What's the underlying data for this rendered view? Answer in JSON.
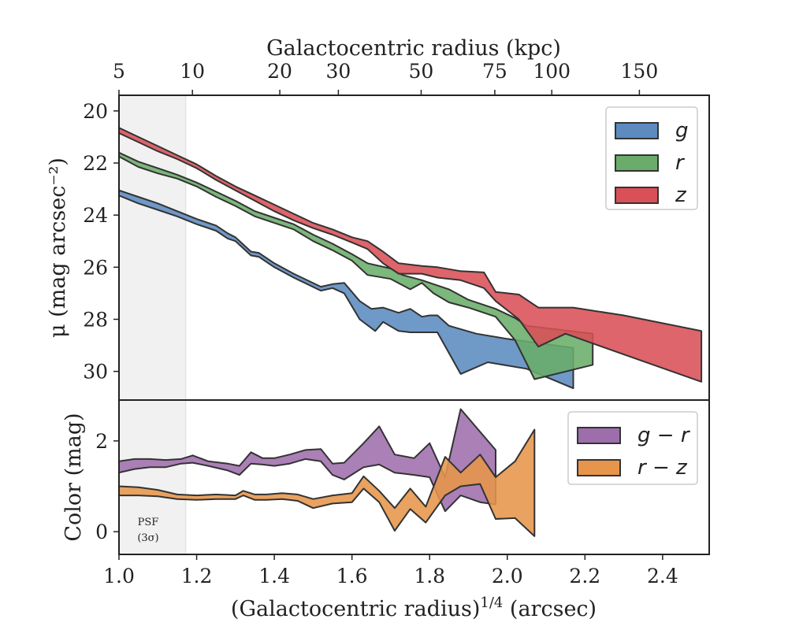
{
  "chart_data": [
    {
      "type": "area",
      "panel": "surface-brightness",
      "top_xlabel": "Galactocentric radius (kpc)",
      "top_xticks": [
        "5",
        "10",
        "20",
        "30",
        "50",
        "75",
        "100",
        "150"
      ],
      "top_xtick_kpc": [
        5,
        10,
        20,
        30,
        50,
        75,
        100,
        150
      ],
      "ylabel": "μ (mag arcsec⁻²)",
      "ylim": [
        31.1,
        19.4
      ],
      "y_inverted": true,
      "yticks": [
        20,
        22,
        24,
        26,
        28,
        30
      ],
      "xlim": [
        1.0,
        2.52
      ],
      "shaded_region": [
        1.0,
        1.172
      ],
      "legend_position": "top-right",
      "series": [
        {
          "name": "g",
          "color": "#5b8bbf",
          "upper": [
            [
              1.0,
              23.05
            ],
            [
              1.05,
              23.3
            ],
            [
              1.1,
              23.55
            ],
            [
              1.15,
              23.85
            ],
            [
              1.2,
              24.15
            ],
            [
              1.25,
              24.4
            ],
            [
              1.28,
              24.7
            ],
            [
              1.3,
              24.85
            ],
            [
              1.34,
              25.4
            ],
            [
              1.36,
              25.45
            ],
            [
              1.4,
              25.85
            ],
            [
              1.45,
              26.25
            ],
            [
              1.52,
              26.75
            ],
            [
              1.55,
              26.65
            ],
            [
              1.58,
              26.6
            ],
            [
              1.62,
              27.3
            ],
            [
              1.65,
              27.6
            ],
            [
              1.68,
              27.55
            ],
            [
              1.72,
              27.75
            ],
            [
              1.75,
              27.6
            ],
            [
              1.78,
              27.9
            ],
            [
              1.8,
              27.85
            ],
            [
              1.82,
              27.85
            ],
            [
              1.85,
              28.25
            ],
            [
              1.92,
              28.55
            ],
            [
              2.0,
              28.75
            ],
            [
              2.17,
              29.1
            ]
          ],
          "lower": [
            [
              1.0,
              23.25
            ],
            [
              1.05,
              23.55
            ],
            [
              1.1,
              23.8
            ],
            [
              1.15,
              24.05
            ],
            [
              1.2,
              24.35
            ],
            [
              1.25,
              24.6
            ],
            [
              1.28,
              24.9
            ],
            [
              1.3,
              25.0
            ],
            [
              1.34,
              25.55
            ],
            [
              1.36,
              25.6
            ],
            [
              1.4,
              26.0
            ],
            [
              1.45,
              26.4
            ],
            [
              1.52,
              26.9
            ],
            [
              1.55,
              26.8
            ],
            [
              1.58,
              27.0
            ],
            [
              1.62,
              28.0
            ],
            [
              1.66,
              28.45
            ],
            [
              1.68,
              28.1
            ],
            [
              1.72,
              28.45
            ],
            [
              1.75,
              28.5
            ],
            [
              1.8,
              28.5
            ],
            [
              1.82,
              28.5
            ],
            [
              1.88,
              30.1
            ],
            [
              1.95,
              29.65
            ],
            [
              2.05,
              29.9
            ],
            [
              2.17,
              30.65
            ]
          ]
        },
        {
          "name": "r",
          "color": "#6aad6a",
          "upper": [
            [
              1.0,
              21.6
            ],
            [
              1.05,
              21.95
            ],
            [
              1.1,
              22.2
            ],
            [
              1.15,
              22.45
            ],
            [
              1.2,
              22.75
            ],
            [
              1.25,
              23.1
            ],
            [
              1.3,
              23.45
            ],
            [
              1.35,
              23.85
            ],
            [
              1.4,
              24.1
            ],
            [
              1.45,
              24.35
            ],
            [
              1.5,
              24.75
            ],
            [
              1.55,
              25.1
            ],
            [
              1.6,
              25.5
            ],
            [
              1.64,
              25.85
            ],
            [
              1.7,
              26.05
            ],
            [
              1.73,
              26.3
            ],
            [
              1.78,
              26.5
            ],
            [
              1.81,
              26.65
            ],
            [
              1.85,
              26.85
            ],
            [
              1.9,
              27.25
            ],
            [
              1.97,
              27.6
            ],
            [
              2.02,
              27.95
            ],
            [
              2.05,
              28.25
            ],
            [
              2.22,
              28.55
            ]
          ],
          "lower": [
            [
              1.0,
              21.75
            ],
            [
              1.05,
              22.15
            ],
            [
              1.1,
              22.4
            ],
            [
              1.15,
              22.6
            ],
            [
              1.2,
              22.9
            ],
            [
              1.25,
              23.3
            ],
            [
              1.3,
              23.65
            ],
            [
              1.35,
              24.05
            ],
            [
              1.4,
              24.3
            ],
            [
              1.45,
              24.55
            ],
            [
              1.5,
              25.0
            ],
            [
              1.55,
              25.35
            ],
            [
              1.6,
              25.75
            ],
            [
              1.64,
              26.3
            ],
            [
              1.7,
              26.45
            ],
            [
              1.75,
              26.85
            ],
            [
              1.78,
              26.6
            ],
            [
              1.81,
              27.0
            ],
            [
              1.85,
              27.35
            ],
            [
              1.9,
              27.55
            ],
            [
              1.97,
              27.9
            ],
            [
              2.02,
              28.8
            ],
            [
              2.07,
              30.3
            ],
            [
              2.22,
              29.75
            ]
          ]
        },
        {
          "name": "z",
          "color": "#d95057",
          "upper": [
            [
              1.0,
              20.65
            ],
            [
              1.05,
              21.0
            ],
            [
              1.1,
              21.35
            ],
            [
              1.15,
              21.7
            ],
            [
              1.2,
              22.05
            ],
            [
              1.25,
              22.5
            ],
            [
              1.3,
              22.9
            ],
            [
              1.35,
              23.25
            ],
            [
              1.4,
              23.6
            ],
            [
              1.45,
              23.95
            ],
            [
              1.5,
              24.3
            ],
            [
              1.55,
              24.55
            ],
            [
              1.6,
              24.85
            ],
            [
              1.64,
              25.0
            ],
            [
              1.68,
              25.4
            ],
            [
              1.72,
              25.85
            ],
            [
              1.78,
              25.95
            ],
            [
              1.82,
              26.0
            ],
            [
              1.88,
              26.15
            ],
            [
              1.94,
              26.2
            ],
            [
              1.97,
              26.95
            ],
            [
              2.03,
              27.05
            ],
            [
              2.08,
              27.55
            ],
            [
              2.17,
              27.55
            ],
            [
              2.3,
              27.85
            ],
            [
              2.5,
              28.45
            ]
          ],
          "lower": [
            [
              1.0,
              20.85
            ],
            [
              1.05,
              21.2
            ],
            [
              1.1,
              21.55
            ],
            [
              1.15,
              21.85
            ],
            [
              1.2,
              22.2
            ],
            [
              1.25,
              22.65
            ],
            [
              1.3,
              23.05
            ],
            [
              1.35,
              23.45
            ],
            [
              1.4,
              23.85
            ],
            [
              1.45,
              24.2
            ],
            [
              1.5,
              24.5
            ],
            [
              1.55,
              24.75
            ],
            [
              1.6,
              25.05
            ],
            [
              1.64,
              25.3
            ],
            [
              1.68,
              25.85
            ],
            [
              1.72,
              26.25
            ],
            [
              1.78,
              26.25
            ],
            [
              1.82,
              26.4
            ],
            [
              1.88,
              26.5
            ],
            [
              1.94,
              26.8
            ],
            [
              1.97,
              27.3
            ],
            [
              2.03,
              28.0
            ],
            [
              2.08,
              29.05
            ],
            [
              2.15,
              28.55
            ],
            [
              2.3,
              29.35
            ],
            [
              2.5,
              30.4
            ]
          ]
        }
      ]
    },
    {
      "type": "area",
      "panel": "color",
      "xlabel": "(Galactocentric radius)",
      "xlabel_sup": "1/4",
      "xlabel_unit": " (arcsec)",
      "xticks": [
        1.0,
        1.2,
        1.4,
        1.6,
        1.8,
        2.0,
        2.2,
        2.4
      ],
      "xtick_labels": [
        "1.0",
        "1.2",
        "1.4",
        "1.6",
        "1.8",
        "2.0",
        "2.2",
        "2.4"
      ],
      "xlim": [
        1.0,
        2.52
      ],
      "ylabel": "Color (mag)",
      "ylim": [
        -0.5,
        2.9
      ],
      "yticks": [
        0,
        2
      ],
      "shaded_region": [
        1.0,
        1.172
      ],
      "annotation_line1": "PSF",
      "annotation_line2": "(3σ)",
      "legend_position": "top-right",
      "series": [
        {
          "name": "g − r",
          "color": "#9e6eac",
          "upper": [
            [
              1.0,
              1.55
            ],
            [
              1.04,
              1.6
            ],
            [
              1.08,
              1.6
            ],
            [
              1.12,
              1.58
            ],
            [
              1.16,
              1.6
            ],
            [
              1.19,
              1.68
            ],
            [
              1.23,
              1.55
            ],
            [
              1.28,
              1.5
            ],
            [
              1.31,
              1.45
            ],
            [
              1.34,
              1.75
            ],
            [
              1.37,
              1.62
            ],
            [
              1.4,
              1.62
            ],
            [
              1.44,
              1.7
            ],
            [
              1.48,
              1.8
            ],
            [
              1.52,
              1.82
            ],
            [
              1.55,
              1.5
            ],
            [
              1.58,
              1.52
            ],
            [
              1.63,
              1.95
            ],
            [
              1.67,
              2.32
            ],
            [
              1.71,
              1.7
            ],
            [
              1.76,
              1.62
            ],
            [
              1.8,
              1.95
            ],
            [
              1.84,
              1.2
            ],
            [
              1.88,
              2.7
            ],
            [
              1.93,
              2.2
            ],
            [
              1.97,
              1.8
            ]
          ],
          "lower": [
            [
              1.0,
              1.3
            ],
            [
              1.04,
              1.38
            ],
            [
              1.08,
              1.42
            ],
            [
              1.12,
              1.42
            ],
            [
              1.16,
              1.5
            ],
            [
              1.19,
              1.52
            ],
            [
              1.23,
              1.45
            ],
            [
              1.28,
              1.35
            ],
            [
              1.31,
              1.25
            ],
            [
              1.34,
              1.5
            ],
            [
              1.37,
              1.48
            ],
            [
              1.4,
              1.45
            ],
            [
              1.44,
              1.5
            ],
            [
              1.48,
              1.6
            ],
            [
              1.52,
              1.55
            ],
            [
              1.55,
              1.25
            ],
            [
              1.58,
              1.15
            ],
            [
              1.63,
              1.42
            ],
            [
              1.67,
              1.48
            ],
            [
              1.71,
              1.3
            ],
            [
              1.76,
              1.25
            ],
            [
              1.8,
              1.2
            ],
            [
              1.84,
              0.45
            ],
            [
              1.88,
              0.8
            ],
            [
              1.93,
              0.65
            ],
            [
              1.97,
              0.6
            ]
          ]
        },
        {
          "name": "r − z",
          "color": "#e6954a",
          "upper": [
            [
              1.0,
              1.0
            ],
            [
              1.05,
              0.98
            ],
            [
              1.1,
              0.92
            ],
            [
              1.15,
              0.82
            ],
            [
              1.2,
              0.8
            ],
            [
              1.25,
              0.82
            ],
            [
              1.3,
              0.8
            ],
            [
              1.32,
              0.9
            ],
            [
              1.35,
              0.82
            ],
            [
              1.38,
              0.82
            ],
            [
              1.42,
              0.85
            ],
            [
              1.46,
              0.82
            ],
            [
              1.5,
              0.72
            ],
            [
              1.55,
              0.8
            ],
            [
              1.6,
              0.85
            ],
            [
              1.63,
              1.22
            ],
            [
              1.67,
              0.9
            ],
            [
              1.71,
              0.52
            ],
            [
              1.75,
              0.95
            ],
            [
              1.79,
              0.55
            ],
            [
              1.84,
              1.65
            ],
            [
              1.88,
              1.3
            ],
            [
              1.93,
              1.7
            ],
            [
              1.97,
              1.2
            ],
            [
              2.02,
              1.55
            ],
            [
              2.07,
              2.25
            ]
          ],
          "lower": [
            [
              1.0,
              0.8
            ],
            [
              1.05,
              0.8
            ],
            [
              1.1,
              0.78
            ],
            [
              1.15,
              0.72
            ],
            [
              1.2,
              0.7
            ],
            [
              1.25,
              0.72
            ],
            [
              1.3,
              0.72
            ],
            [
              1.32,
              0.8
            ],
            [
              1.35,
              0.7
            ],
            [
              1.38,
              0.7
            ],
            [
              1.42,
              0.72
            ],
            [
              1.46,
              0.68
            ],
            [
              1.5,
              0.52
            ],
            [
              1.55,
              0.62
            ],
            [
              1.6,
              0.65
            ],
            [
              1.63,
              0.95
            ],
            [
              1.67,
              0.65
            ],
            [
              1.71,
              0.02
            ],
            [
              1.75,
              0.5
            ],
            [
              1.79,
              0.2
            ],
            [
              1.84,
              0.8
            ],
            [
              1.88,
              1.0
            ],
            [
              1.93,
              1.05
            ],
            [
              1.97,
              0.28
            ],
            [
              2.02,
              0.3
            ],
            [
              2.07,
              -0.1
            ]
          ]
        }
      ]
    }
  ]
}
